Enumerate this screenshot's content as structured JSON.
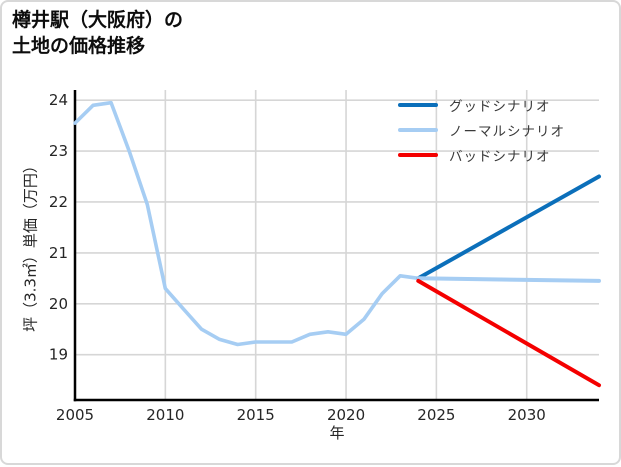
{
  "title": {
    "line1": "樽井駅（大阪府）の",
    "line2": "土地の価格推移"
  },
  "chart_data": {
    "type": "line",
    "title": "樽井駅（大阪府）の土地の価格推移",
    "xlabel": "年",
    "ylabel": "坪（3.3㎡）単価（万円）",
    "xlim": [
      2005,
      2034
    ],
    "ylim": [
      18.11,
      24.2
    ],
    "xticks": [
      2005,
      2010,
      2015,
      2020,
      2025,
      2030
    ],
    "yticks": [
      19,
      20,
      21,
      22,
      23,
      24
    ],
    "grid": true,
    "legend_position": "top-right",
    "colors": {
      "good": "#0b6fba",
      "normal": "#a6cdf3",
      "bad": "#f40000",
      "grid": "#d6d6d6",
      "axis": "#000000",
      "tick_text": "#262626"
    },
    "series": [
      {
        "key": "history",
        "color": "#a6cdf3",
        "width": 3.6,
        "legend": false,
        "points": [
          [
            2005,
            23.55
          ],
          [
            2006,
            23.9
          ],
          [
            2007,
            23.95
          ],
          [
            2008,
            23.0
          ],
          [
            2009,
            21.95
          ],
          [
            2010,
            20.3
          ],
          [
            2011,
            19.9
          ],
          [
            2012,
            19.5
          ],
          [
            2013,
            19.3
          ],
          [
            2014,
            19.2
          ],
          [
            2015,
            19.25
          ],
          [
            2016,
            19.25
          ],
          [
            2017,
            19.25
          ],
          [
            2018,
            19.4
          ],
          [
            2019,
            19.45
          ],
          [
            2020,
            19.4
          ],
          [
            2021,
            19.7
          ],
          [
            2022,
            20.2
          ],
          [
            2023,
            20.55
          ],
          [
            2024,
            20.5
          ]
        ]
      },
      {
        "key": "good",
        "name": "グッドシナリオ",
        "color": "#0b6fba",
        "width": 4,
        "legend": true,
        "points": [
          [
            2024,
            20.5
          ],
          [
            2034,
            22.5
          ]
        ]
      },
      {
        "key": "normal",
        "name": "ノーマルシナリオ",
        "color": "#a6cdf3",
        "width": 4,
        "legend": true,
        "points": [
          [
            2024,
            20.5
          ],
          [
            2034,
            20.45
          ]
        ]
      },
      {
        "key": "bad",
        "name": "バッドシナリオ",
        "color": "#f40000",
        "width": 4,
        "legend": true,
        "points": [
          [
            2024,
            20.45
          ],
          [
            2034,
            18.4
          ]
        ]
      }
    ]
  }
}
